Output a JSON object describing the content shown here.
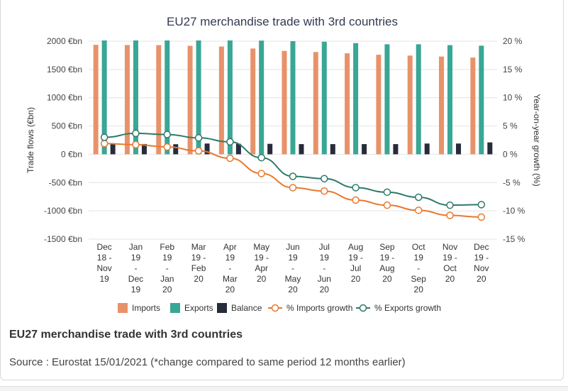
{
  "chart_data": {
    "type": "bar",
    "title": "EU27 merchandise trade with 3rd countries",
    "ylabel": "Trade flows (€bn)",
    "y2label": "Year-on-year growth (%)",
    "ylim": [
      -1500,
      2000
    ],
    "y2lim": [
      -15,
      20
    ],
    "yticks": [
      "2000 €bn",
      "1500 €bn",
      "1000 €bn",
      "500 €bn",
      "0 €bn",
      "-500 €bn",
      "-1000 €bn",
      "-1500 €bn"
    ],
    "y2ticks": [
      "20 %",
      "15 %",
      "10 %",
      "5 %",
      "0 %",
      "-5 %",
      "-10 %",
      "-15 %"
    ],
    "categories": [
      [
        "Dec",
        "18 -",
        "Nov",
        "19"
      ],
      [
        "Jan",
        "19",
        "-",
        "Dec",
        "19"
      ],
      [
        "Feb",
        "19",
        "-",
        "Jan",
        "20"
      ],
      [
        "Mar",
        "19 -",
        "Feb",
        "20"
      ],
      [
        "Apr",
        "19",
        "-",
        "Mar",
        "20"
      ],
      [
        "May",
        "19 -",
        "Apr",
        "20"
      ],
      [
        "Jun",
        "19",
        "-",
        "May",
        "20"
      ],
      [
        "Jul",
        "19",
        "-",
        "Jun",
        "20"
      ],
      [
        "Aug",
        "19 -",
        "Jul",
        "20"
      ],
      [
        "Sep",
        "19 -",
        "Aug",
        "20"
      ],
      [
        "Oct",
        "19",
        "-",
        "Sep",
        "20"
      ],
      [
        "Nov",
        "19 -",
        "Oct",
        "20"
      ],
      [
        "Dec",
        "19 -",
        "Nov",
        "20"
      ]
    ],
    "series": [
      {
        "name": "Imports",
        "type": "bar",
        "axis": "left",
        "color": "#e8926a",
        "values": [
          1935,
          1932,
          1930,
          1918,
          1905,
          1870,
          1828,
          1808,
          1785,
          1760,
          1745,
          1728,
          1710
        ]
      },
      {
        "name": "Exports",
        "type": "bar",
        "axis": "left",
        "color": "#3aa695",
        "values": [
          2040,
          2040,
          2050,
          2045,
          2030,
          2010,
          2000,
          1990,
          1965,
          1945,
          1945,
          1930,
          1920
        ]
      },
      {
        "name": "Balance",
        "type": "bar",
        "axis": "left",
        "color": "#272b3b",
        "values": [
          175,
          182,
          178,
          190,
          185,
          185,
          180,
          180,
          180,
          180,
          190,
          190,
          210
        ]
      },
      {
        "name": "% Imports growth",
        "type": "line",
        "axis": "right",
        "color": "#e8792f",
        "values": [
          1.9,
          1.7,
          1.3,
          0.6,
          -0.7,
          -3.4,
          -5.9,
          -6.5,
          -8.1,
          -9.0,
          -9.9,
          -10.8,
          -11.1
        ]
      },
      {
        "name": "% Exports growth",
        "type": "line",
        "axis": "right",
        "color": "#2e7a6a",
        "values": [
          3.0,
          3.7,
          3.5,
          2.9,
          2.2,
          -0.6,
          -3.9,
          -4.3,
          -5.9,
          -6.7,
          -7.6,
          -9.0,
          -8.9
        ]
      }
    ],
    "legend_position": "bottom",
    "grid": "horizontal"
  },
  "caption": {
    "title": "EU27 merchandise trade with 3rd countries",
    "source": "Source : Eurostat 15/01/2021 (*change compared to same period 12 months earlier)"
  }
}
